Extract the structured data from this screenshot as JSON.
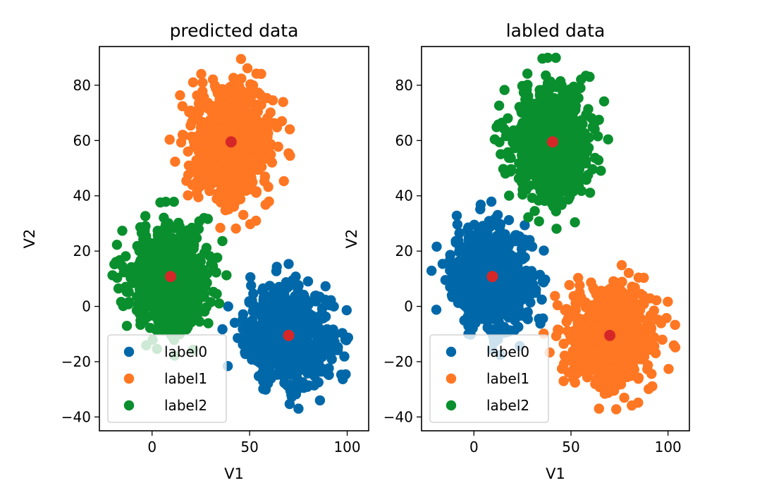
{
  "colors": {
    "label0": "#0068a8",
    "label1": "#ff7722",
    "label2": "#0a8f2e",
    "centroid": "#d62728"
  },
  "chart_data": [
    {
      "type": "scatter",
      "title": "predicted data",
      "xlabel": "V1",
      "ylabel": "V2",
      "xlim": [
        -27,
        111
      ],
      "ylim": [
        -45,
        94
      ],
      "xticks": [
        0,
        50,
        100
      ],
      "yticks": [
        -40,
        -20,
        0,
        20,
        40,
        60,
        80
      ],
      "grid": false,
      "legend": {
        "placement": "lower-left",
        "entries": [
          "label0",
          "label1",
          "label2"
        ]
      },
      "clusters": [
        {
          "series": "label0",
          "center": [
            70,
            -11
          ],
          "spread": [
            11,
            8.5
          ]
        },
        {
          "series": "label1",
          "center": [
            40,
            59
          ],
          "spread": [
            10,
            10
          ]
        },
        {
          "series": "label2",
          "center": [
            9,
            10
          ],
          "spread": [
            10,
            9
          ]
        }
      ],
      "centroids": [
        [
          70,
          -10.5
        ],
        [
          40.5,
          59.5
        ],
        [
          9.5,
          10.8
        ]
      ]
    },
    {
      "type": "scatter",
      "title": "labled data",
      "xlabel": "V1",
      "ylabel": "V2",
      "xlim": [
        -27,
        111
      ],
      "ylim": [
        -45,
        94
      ],
      "xticks": [
        0,
        50,
        100
      ],
      "yticks": [
        -40,
        -20,
        0,
        20,
        40,
        60,
        80
      ],
      "grid": false,
      "legend": {
        "placement": "lower-left",
        "entries": [
          "label0",
          "label1",
          "label2"
        ]
      },
      "clusters": [
        {
          "series": "label0",
          "center": [
            9,
            10
          ],
          "spread": [
            10,
            9
          ]
        },
        {
          "series": "label1",
          "center": [
            70,
            -11
          ],
          "spread": [
            11,
            8.5
          ]
        },
        {
          "series": "label2",
          "center": [
            40,
            59
          ],
          "spread": [
            10,
            10
          ]
        }
      ],
      "centroids": [
        [
          70,
          -10.5
        ],
        [
          40.5,
          59.5
        ],
        [
          9.5,
          10.8
        ]
      ]
    }
  ]
}
